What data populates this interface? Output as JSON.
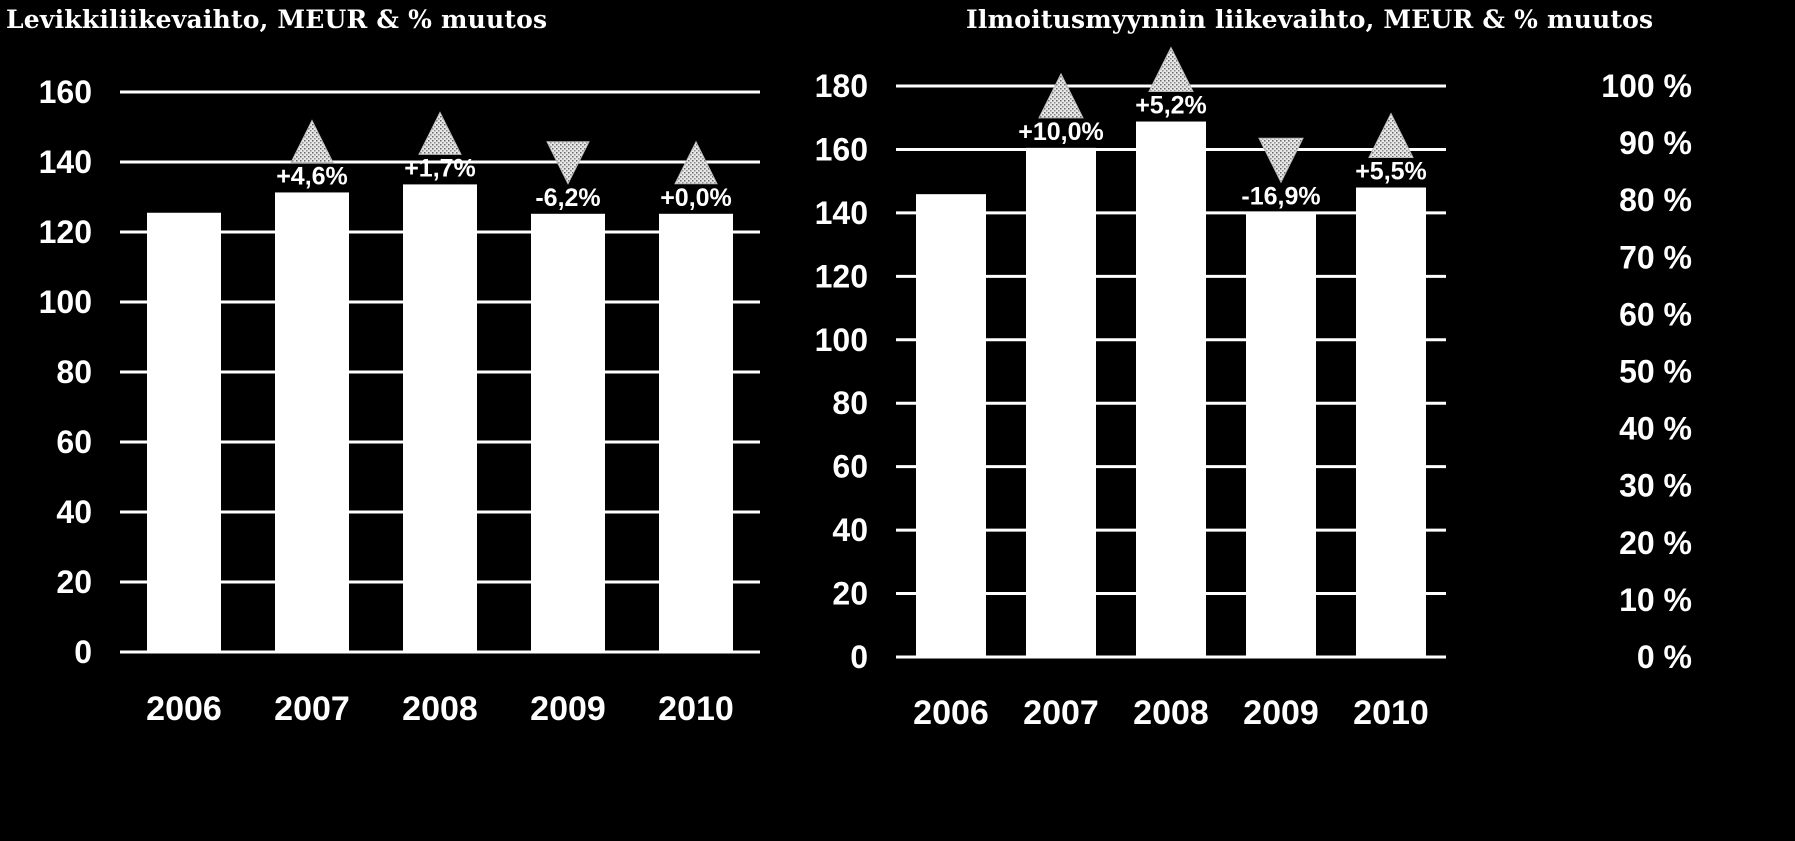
{
  "chart_data": [
    {
      "type": "bar",
      "title": "Levikkiliikevaihto, MEUR & % muutos",
      "categories": [
        "2006",
        "2007",
        "2008",
        "2009",
        "2010"
      ],
      "values": [
        125.5,
        131.3,
        133.6,
        125.2,
        125.2
      ],
      "change_labels": [
        "",
        "+4,6%",
        "+1,7%",
        "-6,2%",
        "+0,0%"
      ],
      "change_direction": [
        "",
        "up",
        "up",
        "down",
        "up"
      ],
      "ylim": [
        0,
        160
      ],
      "yticks": [
        0,
        20,
        40,
        60,
        80,
        100,
        120,
        140,
        160
      ],
      "grid": true,
      "colors": {
        "background": "#000000",
        "bars": "#ffffff",
        "grid": "#ffffff",
        "text": "#ffffff"
      }
    },
    {
      "type": "bar",
      "title": "Ilmoitusmyynnin liikevaihto, MEUR & % muutos",
      "categories": [
        "2006",
        "2007",
        "2008",
        "2009",
        "2010"
      ],
      "values": [
        145.9,
        160.5,
        168.8,
        140.2,
        148.0
      ],
      "change_labels": [
        "",
        "+10,0%",
        "+5,2%",
        "-16,9%",
        "+5,5%"
      ],
      "change_direction": [
        "",
        "up",
        "up",
        "down",
        "up"
      ],
      "ylim": [
        0,
        180
      ],
      "yticks": [
        0,
        20,
        40,
        60,
        80,
        100,
        120,
        140,
        160,
        180
      ],
      "y2lim": [
        0,
        100
      ],
      "y2ticks": [
        "0 %",
        "10 %",
        "20 %",
        "30 %",
        "40 %",
        "50 %",
        "60 %",
        "70 %",
        "80 %",
        "90 %",
        "100 %"
      ],
      "grid": true,
      "colors": {
        "background": "#000000",
        "bars": "#ffffff",
        "grid": "#ffffff",
        "text": "#ffffff"
      }
    }
  ]
}
